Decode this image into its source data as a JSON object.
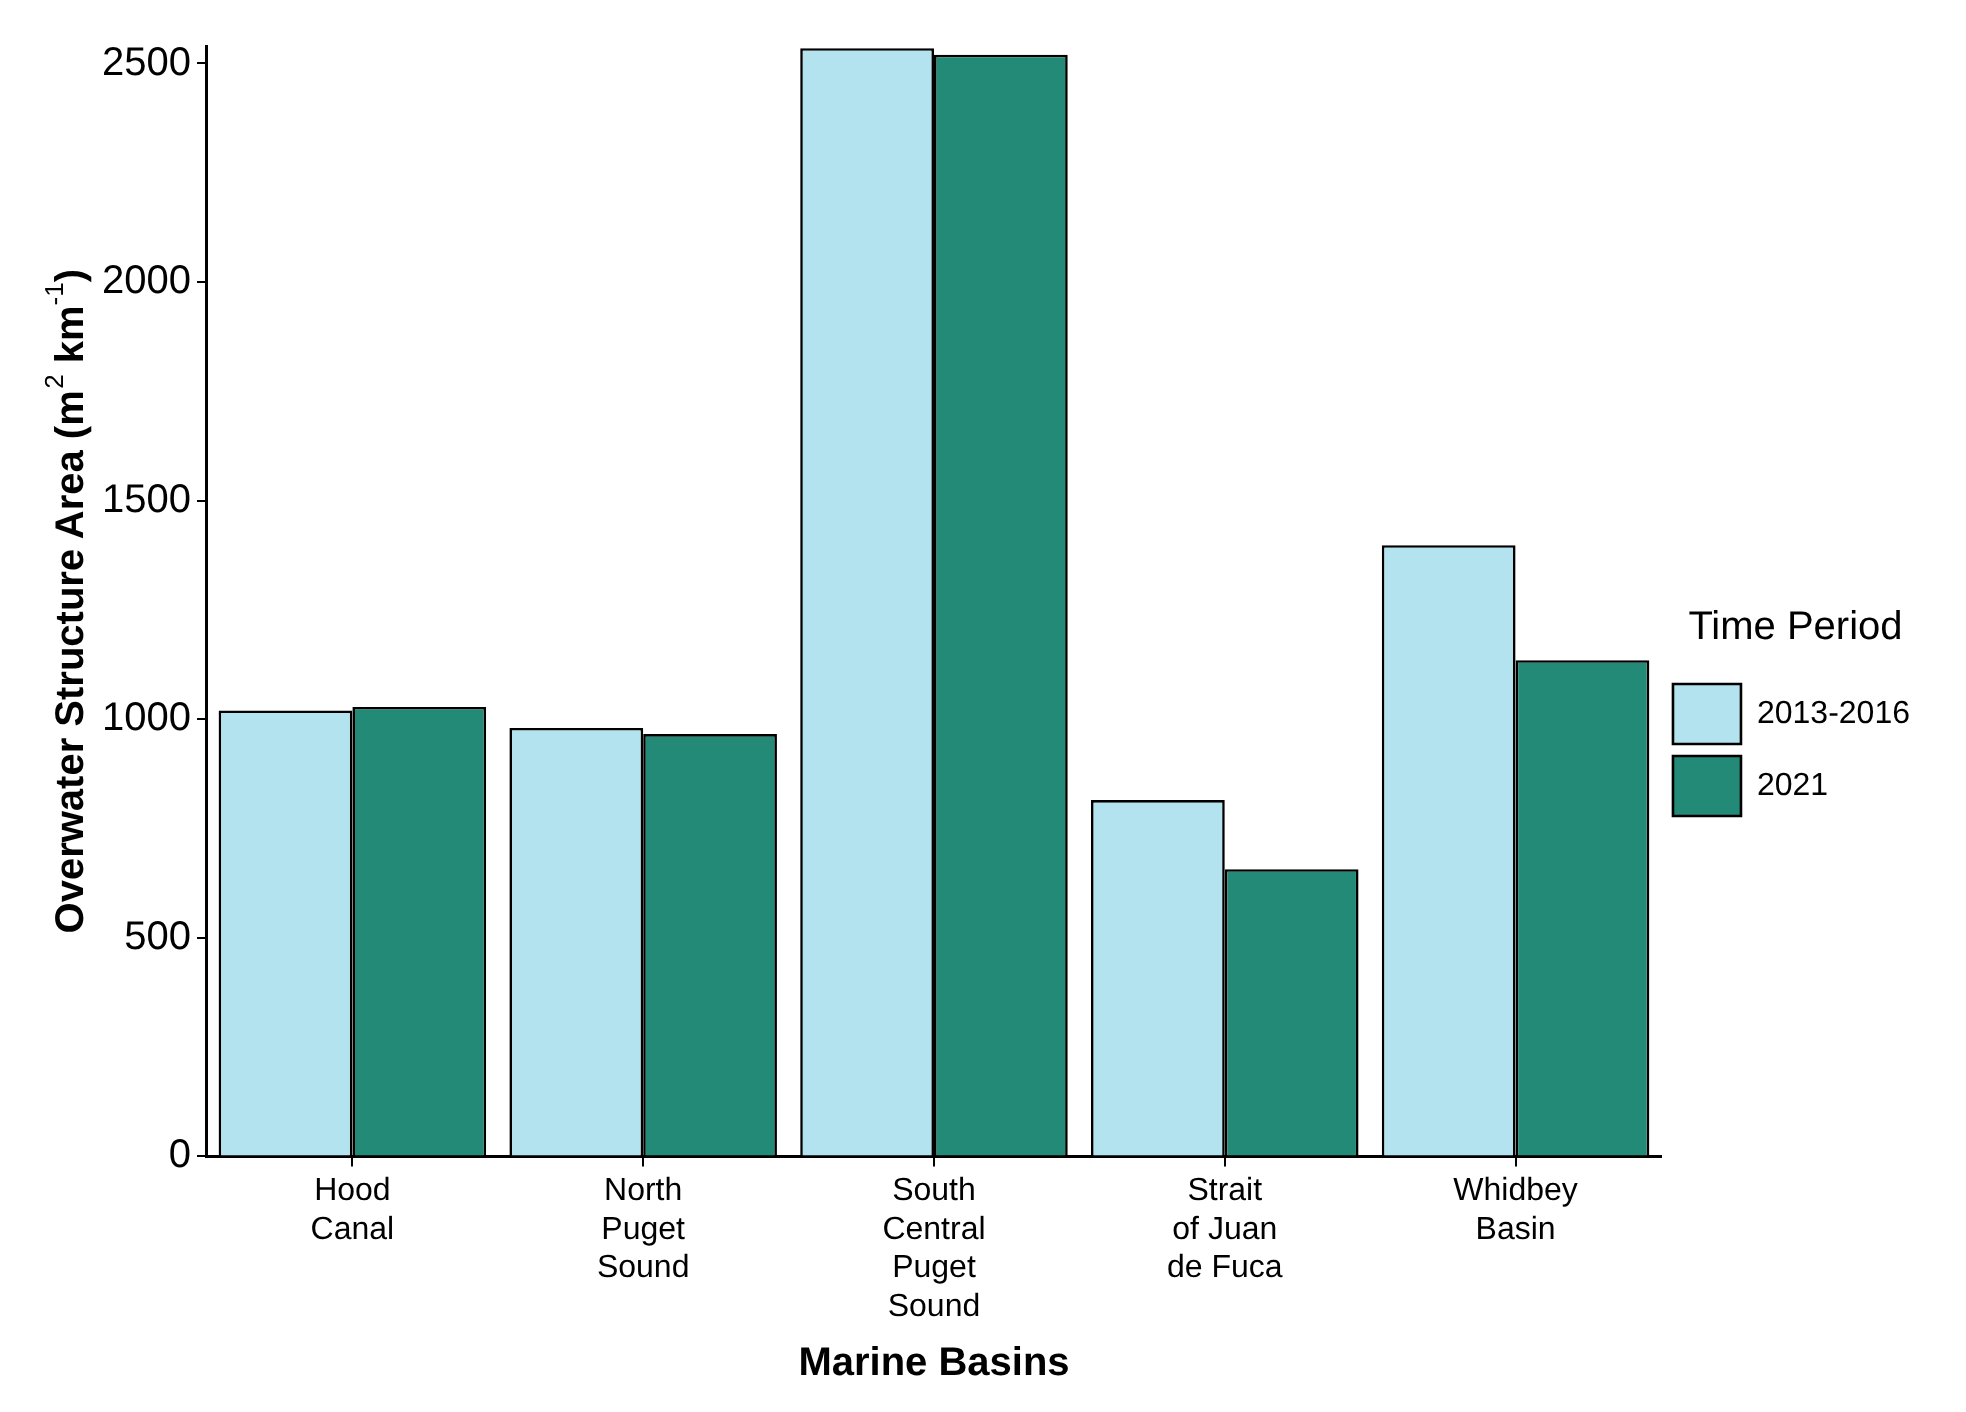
{
  "chart_data": {
    "type": "bar",
    "xlabel": "Marine Basins",
    "ylabel": "Overwater Structure Area (m$^{2}$ km$^{-1}$)",
    "legend_title": "Time Period",
    "categories": [
      "Hood\nCanal",
      "North\nPuget\nSound",
      "South\nCentral\nPuget\nSound",
      "Strait\nof Juan\nde Fuca",
      "Whidbey\nBasin"
    ],
    "series": [
      {
        "name": "2013-2016",
        "color": "#b2e3ee",
        "values": [
          1020,
          980,
          2535,
          815,
          1398
        ]
      },
      {
        "name": "2021",
        "color": "#238a78",
        "values": [
          1028,
          966,
          2520,
          657,
          1135
        ]
      }
    ],
    "ylim": [
      0,
      2540
    ],
    "yticks": [
      0,
      500,
      1000,
      1500,
      2000,
      2500
    ],
    "grid": false,
    "legend": "right"
  }
}
